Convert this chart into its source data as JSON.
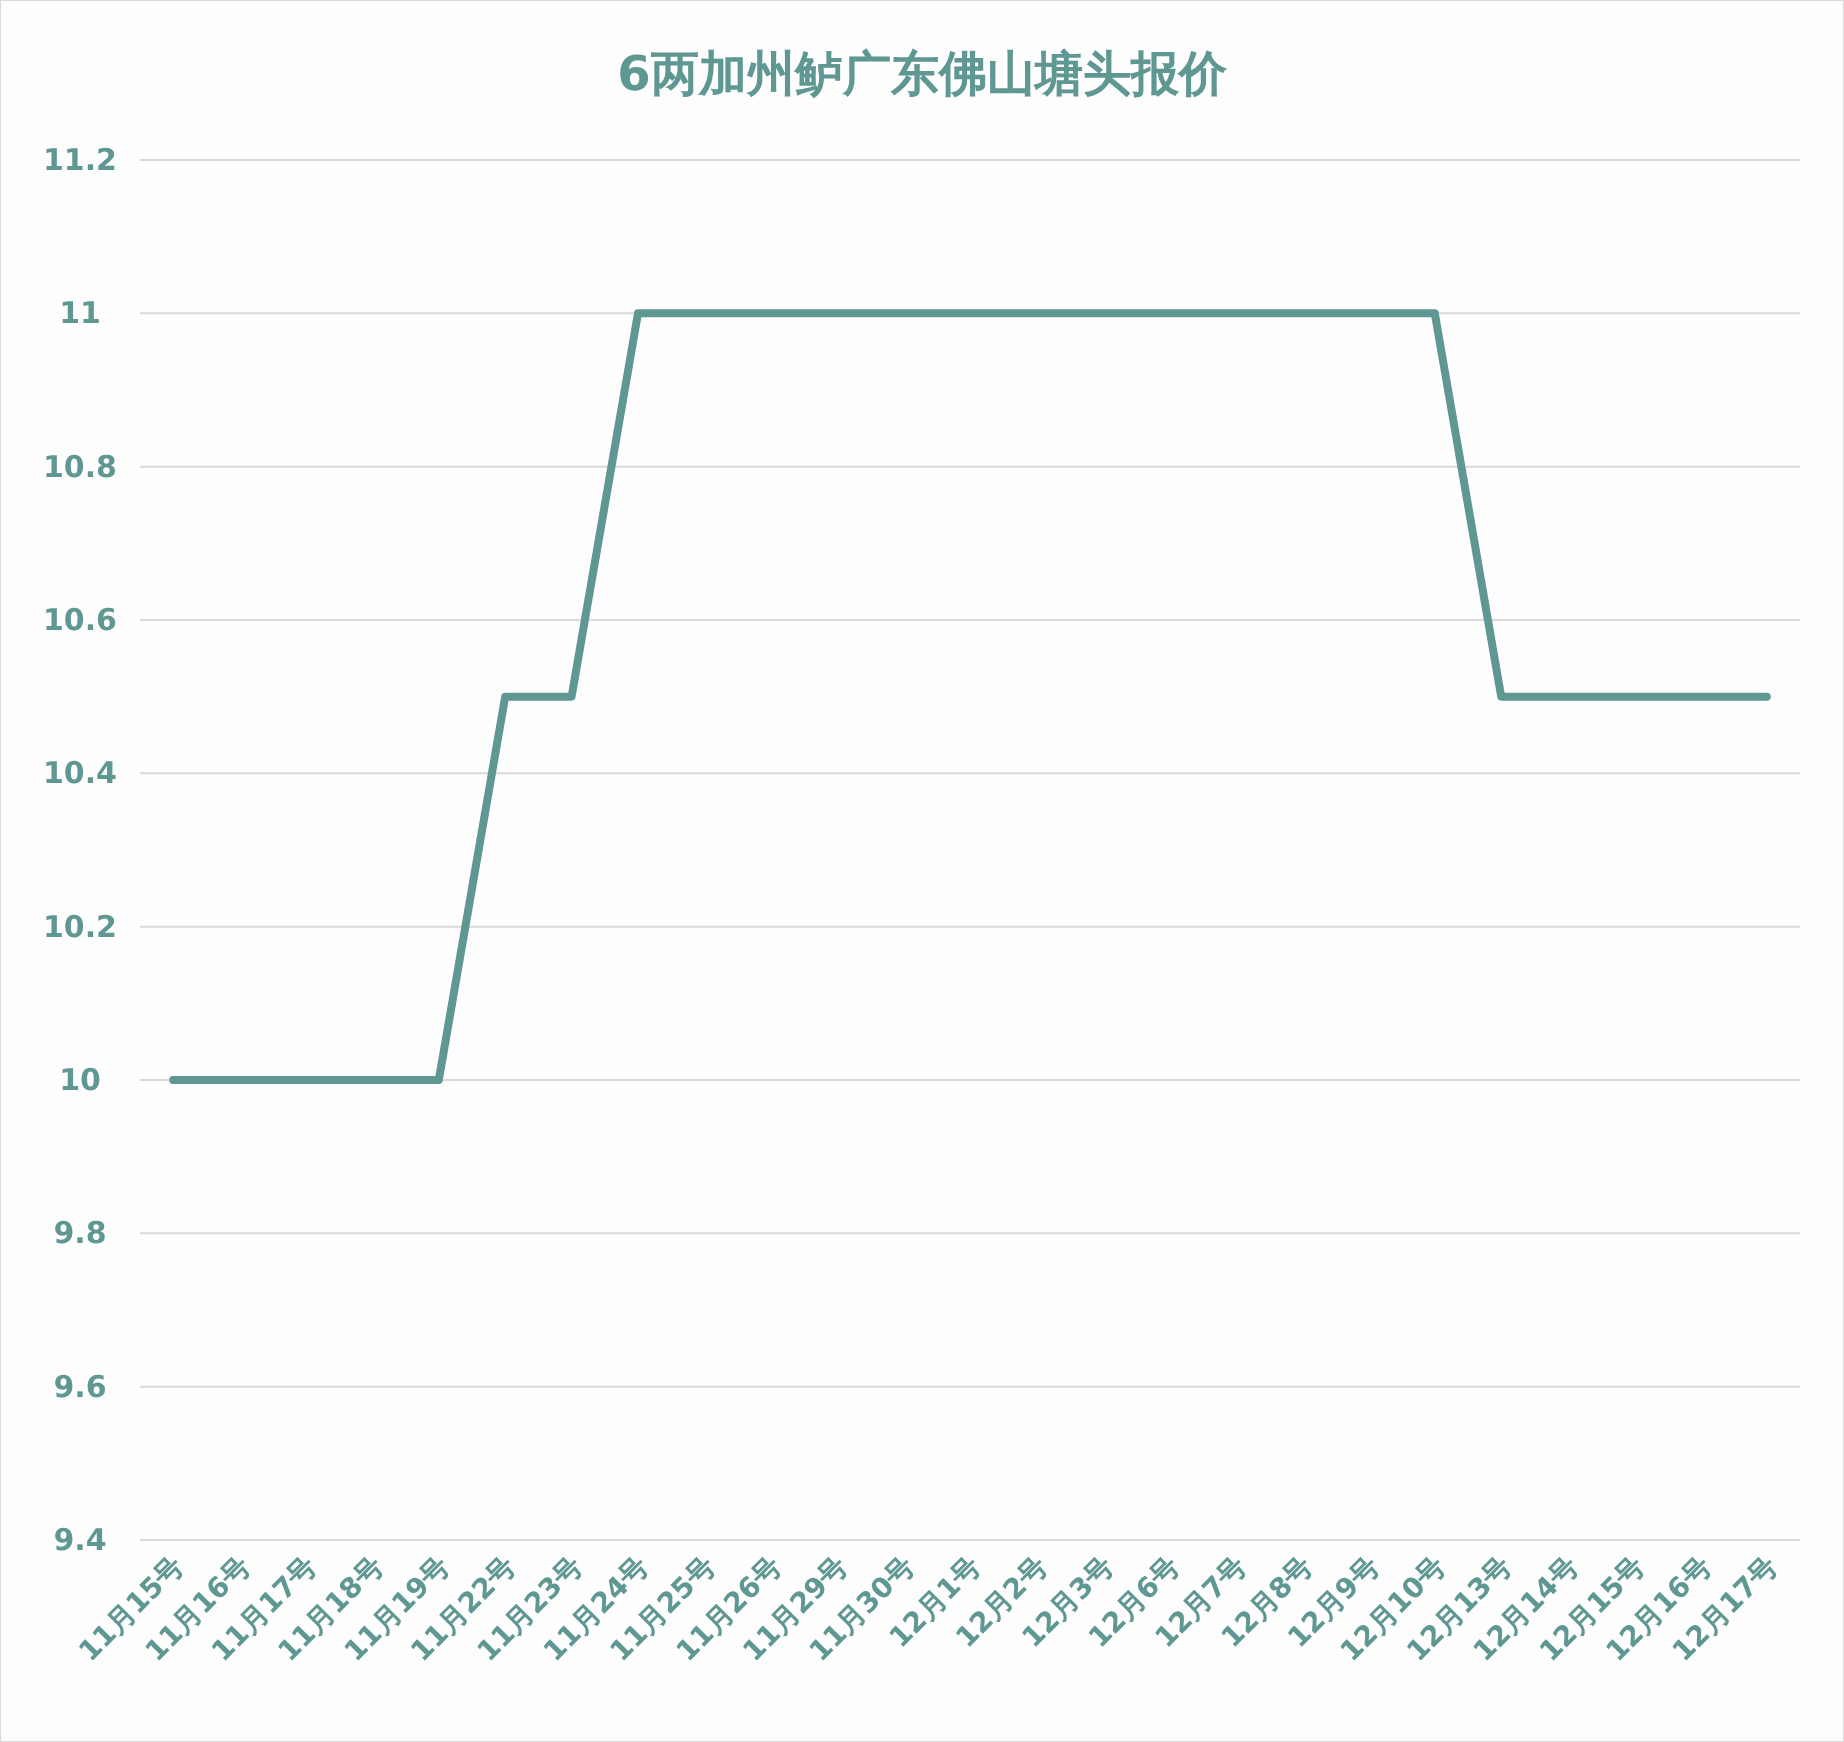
{
  "chart_data": {
    "type": "line",
    "title": "6两加州鲈广东佛山塘头报价",
    "categories": [
      "11月15号",
      "11月16号",
      "11月17号",
      "11月18号",
      "11月19号",
      "11月22号",
      "11月23号",
      "11月24号",
      "11月25号",
      "11月26号",
      "11月29号",
      "11月30号",
      "12月1号",
      "12月2号",
      "12月3号",
      "12月6号",
      "12月7号",
      "12月8号",
      "12月9号",
      "12月10号",
      "12月13号",
      "12月14号",
      "12月15号",
      "12月16号",
      "12月17号"
    ],
    "series": [
      {
        "color": "#5f9793",
        "values": [
          10,
          10,
          10,
          10,
          10,
          10.5,
          10.5,
          11,
          11,
          11,
          11,
          11,
          11,
          11,
          11,
          11,
          11,
          11,
          11,
          11,
          10.5,
          10.5,
          10.5,
          10.5,
          10.5
        ]
      }
    ],
    "ylim": [
      9.4,
      11.2
    ],
    "yticks": [
      9.4,
      9.6,
      9.8,
      10,
      10.2,
      10.4,
      10.6,
      10.8,
      11,
      11.2
    ],
    "grid": "y"
  }
}
